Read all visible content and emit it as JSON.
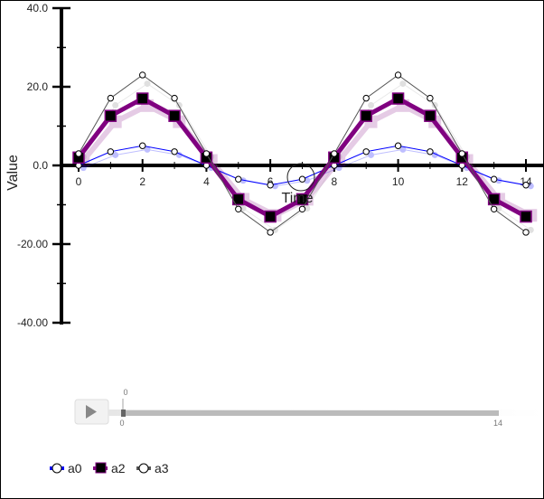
{
  "chart_data": {
    "type": "line",
    "title": "",
    "xlabel": "Time",
    "ylabel": "Value",
    "xlim": [
      0,
      14
    ],
    "ylim": [
      -40,
      40
    ],
    "x": [
      0,
      1,
      2,
      3,
      4,
      5,
      6,
      7,
      8,
      9,
      10,
      11,
      12,
      13,
      14
    ],
    "xticks": [
      "0",
      "2",
      "4",
      "6",
      "8",
      "10",
      "12",
      "14"
    ],
    "yticks": [
      {
        "value": 40,
        "label": "40.0"
      },
      {
        "value": 20,
        "label": "20.0"
      },
      {
        "value": 0,
        "label": "0.0"
      },
      {
        "value": -20,
        "label": "-20.00"
      },
      {
        "value": -40,
        "label": "-40.00"
      }
    ],
    "grid": false,
    "legend": "bottom-left",
    "series": [
      {
        "name": "a0",
        "color": "#0000ff",
        "marker": "circle",
        "values": [
          0,
          3.5,
          5,
          3.5,
          0,
          -3.5,
          -5,
          -3.5,
          0,
          3.5,
          5,
          3.5,
          0,
          -3.5,
          -5
        ]
      },
      {
        "name": "a2",
        "color": "#800080",
        "marker": "square",
        "values": [
          2,
          12.6,
          17,
          12.6,
          2,
          -8.6,
          -13,
          -8.6,
          2,
          12.6,
          17,
          12.6,
          2,
          -8.6,
          -13
        ]
      },
      {
        "name": "a3",
        "color": "#555555",
        "marker": "circle",
        "values": [
          3,
          17.1,
          23,
          17.1,
          3,
          -11.1,
          -17,
          -11.1,
          3,
          17.1,
          23,
          17.1,
          3,
          -11.1,
          -17
        ]
      }
    ]
  },
  "slider": {
    "current_label": "0",
    "min_label": "0",
    "max_label": "14",
    "value": 0
  }
}
